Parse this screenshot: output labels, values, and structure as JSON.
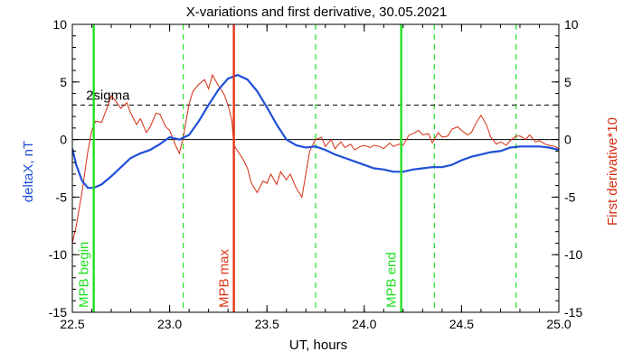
{
  "chart_data": {
    "type": "line",
    "title": "X-variations and first derivative, 30.05.2021",
    "xlabel": "UT, hours",
    "ylabel_left": "deltaX, nT",
    "ylabel_right": "First derivative*10",
    "xlim": [
      22.5,
      25.0
    ],
    "ylim": [
      -15,
      10
    ],
    "x_ticks": [
      "22.5",
      "23.0",
      "23.5",
      "24.0",
      "24.5",
      "25.0"
    ],
    "y_ticks": [
      "-15",
      "-10",
      "-5",
      "0",
      "5",
      "10"
    ],
    "sigma_level": 3,
    "sigma_label": "2sigma",
    "colors": {
      "deltaX": "#1f4fd8",
      "derivative": "#d42c10",
      "mpb_edges": "#22e022",
      "mpb_max": "#e0361a",
      "dashed_markers": "#22e022",
      "sigma_line": "#000000",
      "zero_line": "#000000"
    },
    "vertical_markers": [
      {
        "x": 22.61,
        "label": "MPB begin",
        "kind": "edge"
      },
      {
        "x": 23.33,
        "label": "MPB max",
        "kind": "max"
      },
      {
        "x": 24.19,
        "label": "MPB end",
        "kind": "edge"
      }
    ],
    "dashed_markers_x": [
      23.07,
      23.75,
      24.36,
      24.78
    ],
    "series": [
      {
        "name": "deltaX",
        "axis": "left",
        "x": [
          22.5,
          22.52,
          22.55,
          22.58,
          22.61,
          22.65,
          22.7,
          22.75,
          22.8,
          22.85,
          22.9,
          22.95,
          23.0,
          23.05,
          23.1,
          23.15,
          23.2,
          23.25,
          23.3,
          23.35,
          23.4,
          23.45,
          23.5,
          23.55,
          23.6,
          23.65,
          23.7,
          23.75,
          23.8,
          23.85,
          23.9,
          23.95,
          24.0,
          24.05,
          24.1,
          24.15,
          24.2,
          24.25,
          24.3,
          24.35,
          24.4,
          24.45,
          24.5,
          24.55,
          24.6,
          24.65,
          24.7,
          24.75,
          24.8,
          24.85,
          24.9,
          24.95,
          25.0
        ],
        "y": [
          -0.8,
          -2.2,
          -3.6,
          -4.2,
          -4.2,
          -3.9,
          -3.2,
          -2.4,
          -1.6,
          -1.2,
          -0.9,
          -0.4,
          0.2,
          0.0,
          0.4,
          1.6,
          3.0,
          4.3,
          5.3,
          5.6,
          5.2,
          4.2,
          2.8,
          1.3,
          0.0,
          -0.5,
          -0.7,
          -0.6,
          -0.9,
          -1.3,
          -1.6,
          -1.9,
          -2.2,
          -2.5,
          -2.6,
          -2.8,
          -2.8,
          -2.6,
          -2.5,
          -2.4,
          -2.4,
          -2.2,
          -1.8,
          -1.5,
          -1.3,
          -1.1,
          -1.0,
          -0.7,
          -0.6,
          -0.6,
          -0.6,
          -0.7,
          -0.9
        ]
      },
      {
        "name": "First derivative*10",
        "axis": "right",
        "x": [
          22.5,
          22.52,
          22.55,
          22.58,
          22.6,
          22.62,
          22.65,
          22.68,
          22.7,
          22.72,
          22.75,
          22.78,
          22.8,
          22.83,
          22.85,
          22.88,
          22.9,
          22.93,
          22.95,
          22.98,
          23.0,
          23.03,
          23.05,
          23.07,
          23.1,
          23.12,
          23.15,
          23.18,
          23.2,
          23.22,
          23.25,
          23.28,
          23.3,
          23.32,
          23.33,
          23.35,
          23.38,
          23.4,
          23.42,
          23.45,
          23.48,
          23.5,
          23.52,
          23.55,
          23.57,
          23.6,
          23.62,
          23.65,
          23.68,
          23.7,
          23.72,
          23.75,
          23.78,
          23.8,
          23.83,
          23.85,
          23.88,
          23.9,
          23.93,
          23.95,
          23.98,
          24.0,
          24.03,
          24.05,
          24.08,
          24.1,
          24.13,
          24.15,
          24.18,
          24.2,
          24.23,
          24.25,
          24.28,
          24.3,
          24.33,
          24.35,
          24.38,
          24.4,
          24.43,
          24.45,
          24.48,
          24.5,
          24.53,
          24.55,
          24.58,
          24.6,
          24.63,
          24.65,
          24.68,
          24.7,
          24.73,
          24.75,
          24.78,
          24.8,
          24.83,
          24.85,
          24.88,
          24.9,
          24.93,
          24.95,
          24.98,
          25.0
        ],
        "y": [
          -9.0,
          -7.5,
          -4.5,
          -1.0,
          0.8,
          1.6,
          1.5,
          2.8,
          3.8,
          3.4,
          2.7,
          3.2,
          2.3,
          1.3,
          1.8,
          0.6,
          1.1,
          2.3,
          2.2,
          1.1,
          0.8,
          -0.5,
          -1.2,
          0.2,
          3.1,
          4.2,
          4.8,
          5.2,
          4.4,
          5.6,
          4.7,
          3.9,
          3.0,
          1.6,
          -0.5,
          -1.0,
          -1.8,
          -2.5,
          -3.8,
          -4.6,
          -3.6,
          -3.8,
          -3.0,
          -3.9,
          -2.8,
          -3.5,
          -3.0,
          -4.2,
          -5.0,
          -3.0,
          -1.0,
          0.0,
          0.2,
          -0.6,
          0.0,
          -0.8,
          -0.2,
          -0.7,
          -0.4,
          -0.9,
          -0.6,
          -0.5,
          -0.7,
          -0.5,
          -0.6,
          -0.8,
          -0.3,
          -0.6,
          -0.4,
          -0.5,
          0.4,
          0.5,
          0.8,
          0.4,
          0.5,
          -0.3,
          0.6,
          0.2,
          0.3,
          0.9,
          1.1,
          0.8,
          0.4,
          0.6,
          1.6,
          2.1,
          1.2,
          0.2,
          -0.4,
          -0.2,
          -0.5,
          -0.1,
          0.3,
          0.3,
          0.0,
          0.4,
          -0.2,
          -0.1,
          -0.4,
          -0.5,
          -0.6,
          -0.8
        ]
      }
    ]
  }
}
